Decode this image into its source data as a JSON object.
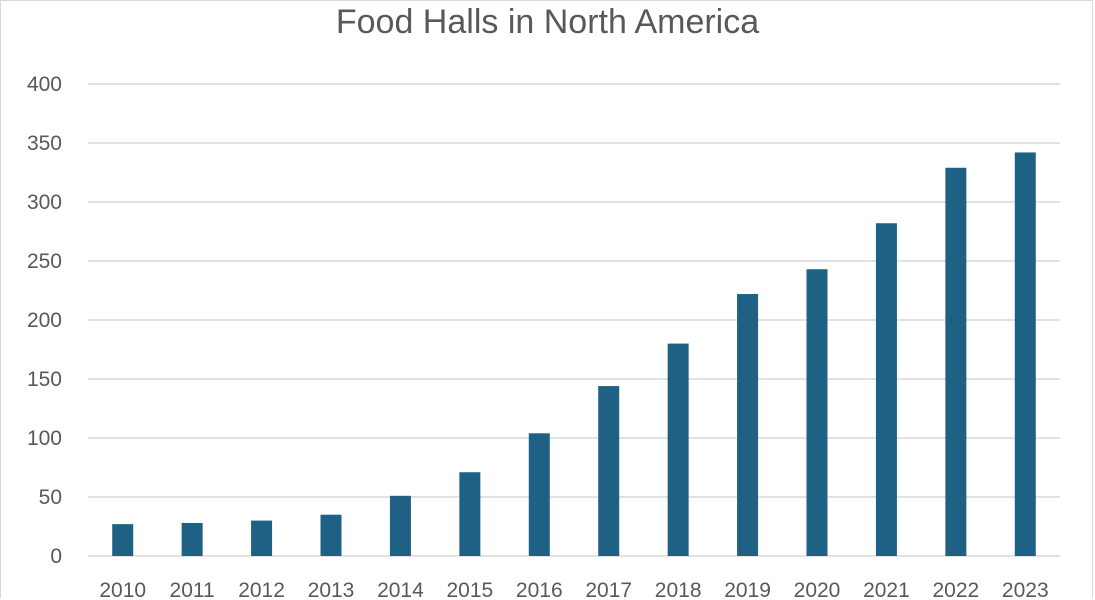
{
  "chart_data": {
    "type": "bar",
    "title": "Food Halls in North America",
    "categories": [
      "2010",
      "2011",
      "2012",
      "2013",
      "2014",
      "2015",
      "2016",
      "2017",
      "2018",
      "2019",
      "2020",
      "2021",
      "2022",
      "2023"
    ],
    "values": [
      27,
      28,
      30,
      35,
      51,
      71,
      104,
      144,
      180,
      222,
      243,
      282,
      329,
      342
    ],
    "ylim": [
      0,
      400
    ],
    "yticks": [
      "0",
      "50",
      "100",
      "150",
      "200",
      "250",
      "300",
      "350",
      "400"
    ],
    "grid": true,
    "bar_color": "#1f6184",
    "grid_color": "#d9d9d9",
    "text_color": "#595959"
  }
}
